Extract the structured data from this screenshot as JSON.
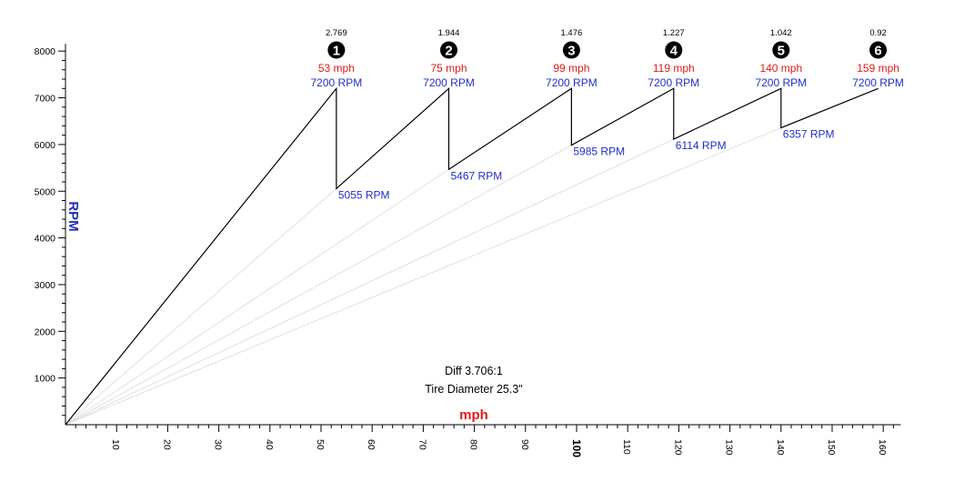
{
  "chart_data": {
    "type": "line",
    "title": "",
    "xlabel": "mph",
    "ylabel": "RPM",
    "xlim": [
      0,
      162
    ],
    "ylim": [
      0,
      8000
    ],
    "x_ticks": [
      10,
      20,
      30,
      40,
      50,
      60,
      70,
      80,
      90,
      100,
      110,
      120,
      130,
      140,
      150,
      160
    ],
    "x_tick_labels": [
      "10",
      "20",
      "30",
      "40",
      "50",
      "60",
      "70",
      "80",
      "90",
      "100",
      "110",
      "120",
      "130",
      "140",
      "150",
      "160"
    ],
    "x_tick_bold": "100",
    "y_ticks": [
      1000,
      2000,
      3000,
      4000,
      5000,
      6000,
      7000,
      8000
    ],
    "y_tick_labels": [
      "1000",
      "2000",
      "3000",
      "4000",
      "5000",
      "6000",
      "7000",
      "8000"
    ],
    "grid": false,
    "gears": [
      {
        "gear": "1",
        "ratio": "2.769",
        "shift_mph": 53,
        "shift_mph_label": "53 mph",
        "shift_rpm": 7200,
        "shift_rpm_label": "7200 RPM",
        "start_mph": 0,
        "start_rpm": 0,
        "start_rpm_label": ""
      },
      {
        "gear": "2",
        "ratio": "1.944",
        "shift_mph": 75,
        "shift_mph_label": "75 mph",
        "shift_rpm": 7200,
        "shift_rpm_label": "7200 RPM",
        "start_mph": 53,
        "start_rpm": 5055,
        "start_rpm_label": "5055 RPM"
      },
      {
        "gear": "3",
        "ratio": "1.476",
        "shift_mph": 99,
        "shift_mph_label": "99 mph",
        "shift_rpm": 7200,
        "shift_rpm_label": "7200 RPM",
        "start_mph": 75,
        "start_rpm": 5467,
        "start_rpm_label": "5467 RPM"
      },
      {
        "gear": "4",
        "ratio": "1.227",
        "shift_mph": 119,
        "shift_mph_label": "119 mph",
        "shift_rpm": 7200,
        "shift_rpm_label": "7200 RPM",
        "start_mph": 99,
        "start_rpm": 5985,
        "start_rpm_label": "5985 RPM"
      },
      {
        "gear": "5",
        "ratio": "1.042",
        "shift_mph": 140,
        "shift_mph_label": "140 mph",
        "shift_rpm": 7200,
        "shift_rpm_label": "7200 RPM",
        "start_mph": 119,
        "start_rpm": 6114,
        "start_rpm_label": "6114 RPM"
      },
      {
        "gear": "6",
        "ratio": "0.92",
        "shift_mph": 159,
        "shift_mph_label": "159 mph",
        "shift_rpm": 7200,
        "shift_rpm_label": "7200 RPM",
        "start_mph": 140,
        "start_rpm": 6357,
        "start_rpm_label": "6357 RPM"
      }
    ],
    "annotations": [
      "Diff 3.706:1",
      "Tire Diameter 25.3\""
    ],
    "colors": {
      "line": "#000000",
      "guide": "#e0e0e0",
      "mph": "#e01a1a",
      "rpm": "#2030c8",
      "ylabel": "#1f2fb8",
      "badge": "#000000"
    }
  }
}
